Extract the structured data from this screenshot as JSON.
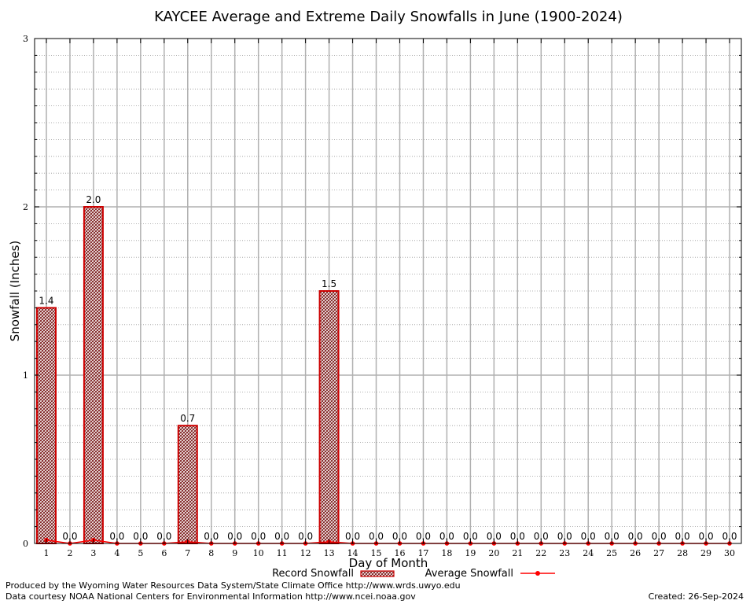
{
  "chart_data": {
    "type": "bar",
    "title": "KAYCEE Average and Extreme Daily Snowfalls in June (1900-2024)",
    "xlabel": "Day of Month",
    "ylabel": "Snowfall (Inches)",
    "ylim": [
      0,
      3
    ],
    "yticks": [
      "0",
      "1",
      "2",
      "3"
    ],
    "categories": [
      "1",
      "2",
      "3",
      "4",
      "5",
      "6",
      "7",
      "8",
      "9",
      "10",
      "11",
      "12",
      "13",
      "14",
      "15",
      "16",
      "17",
      "18",
      "19",
      "20",
      "21",
      "22",
      "23",
      "24",
      "25",
      "26",
      "27",
      "28",
      "29",
      "30"
    ],
    "grid": true,
    "legend_placement": "bottom",
    "series": [
      {
        "name": "Record Snowfall",
        "type": "bar",
        "color": "#cc0000",
        "values": [
          1.4,
          0,
          2.0,
          0,
          0,
          0,
          0.7,
          0,
          0,
          0,
          0,
          0,
          1.5,
          0,
          0,
          0,
          0,
          0,
          0,
          0,
          0,
          0,
          0,
          0,
          0,
          0,
          0,
          0,
          0,
          0
        ],
        "labels": [
          "1.4",
          "0.0",
          "2.0",
          "0.0",
          "0.0",
          "0.0",
          "0.7",
          "0.0",
          "0.0",
          "0.0",
          "0.0",
          "0.0",
          "1.5",
          "0.0",
          "0.0",
          "0.0",
          "0.0",
          "0.0",
          "0.0",
          "0.0",
          "0.0",
          "0.0",
          "0.0",
          "0.0",
          "0.0",
          "0.0",
          "0.0",
          "0.0",
          "0.0",
          "0.0"
        ]
      },
      {
        "name": "Average Snowfall",
        "type": "line",
        "color": "#ff0000",
        "values": [
          0.02,
          0,
          0.02,
          0,
          0,
          0,
          0.01,
          0,
          0,
          0,
          0,
          0,
          0.01,
          0,
          0,
          0,
          0,
          0,
          0,
          0,
          0,
          0,
          0,
          0,
          0,
          0,
          0,
          0,
          0,
          0
        ]
      }
    ]
  },
  "footer": {
    "line1": "Produced by the Wyoming Water Resources Data System/State Climate Office http://www.wrds.uwyo.edu",
    "line2": "Data courtesy NOAA National Centers for Environmental Information http://www.ncei.noaa.gov",
    "created": "Created:  26-Sep-2024"
  }
}
